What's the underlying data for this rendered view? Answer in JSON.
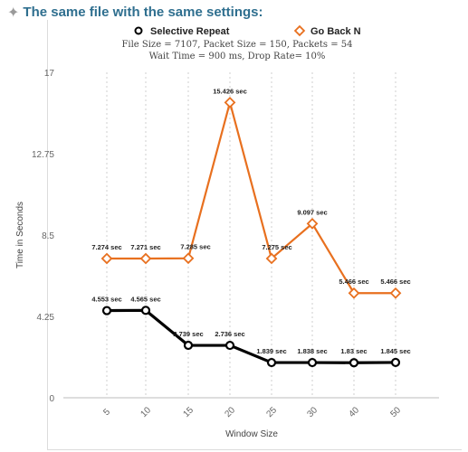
{
  "heading": {
    "text": "The same file with the same settings:",
    "bullet_icon": "four-point-star-icon"
  },
  "info": {
    "line1": "File Size = 7107,  Packet Size = 150,  Packets = 54",
    "line2": "Wait Time = 900 ms,  Drop Rate= 10%"
  },
  "colors": {
    "selective": "#000000",
    "gobackn": "#e8701f",
    "grid": "#cfcfcf",
    "heading": "#2f6f8f"
  },
  "chart_data": {
    "type": "line",
    "categories": [
      "5",
      "10",
      "15",
      "20",
      "25",
      "30",
      "40",
      "50"
    ],
    "xlabel": "Window Size",
    "ylabel": "Time in Seconds",
    "ylim": [
      0,
      17
    ],
    "yticks": [
      "0",
      "4.25",
      "8.5",
      "12.75",
      "17"
    ],
    "grid": "vertical dotted",
    "legend_position": "top-center",
    "series": [
      {
        "name": "Selective Repeat",
        "marker": "circle",
        "values": [
          4.553,
          4.565,
          2.739,
          2.736,
          1.839,
          1.838,
          1.83,
          1.845
        ],
        "labels": [
          "4.553 sec",
          "4.565 sec",
          "2.739 sec",
          "2.736 sec",
          "1.839 sec",
          "1.838 sec",
          "1.83 sec",
          "1.845 sec"
        ]
      },
      {
        "name": "Go Back N",
        "marker": "diamond",
        "values": [
          7.274,
          7.271,
          7.285,
          15.426,
          7.275,
          9.097,
          5.466,
          5.466
        ],
        "labels": [
          "7.274 sec",
          "7.271 sec",
          "7.285 sec",
          "15.426 sec",
          "7.275 sec",
          "9.097 sec",
          "5.466 sec",
          "5.466 sec"
        ]
      }
    ]
  }
}
